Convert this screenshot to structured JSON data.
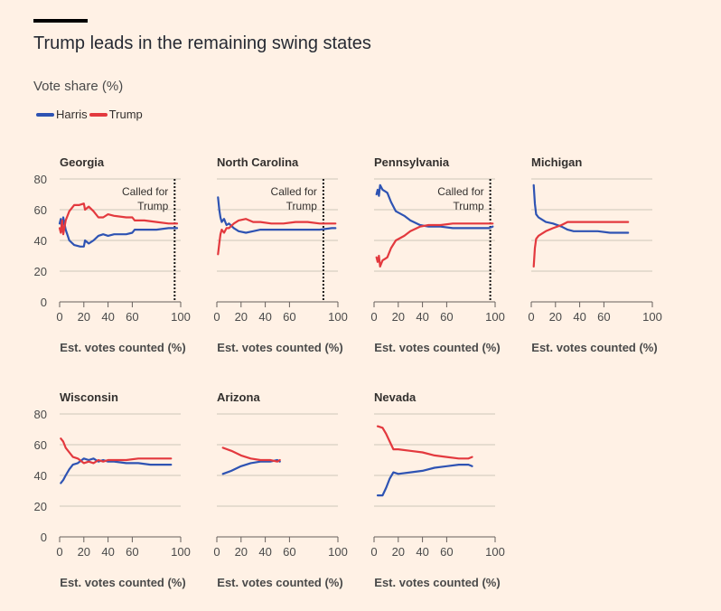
{
  "title": "Trump leads in the remaining swing states",
  "subtitle": "Vote share (%)",
  "legend": [
    {
      "name": "Harris",
      "color": "#2e53b3"
    },
    {
      "name": "Trump",
      "color": "#e3393e"
    }
  ],
  "called_label": [
    "Called for",
    "Trump"
  ],
  "chart_data": [
    {
      "type": "line",
      "title": "Georgia",
      "xlabel": "Est. votes counted (%)",
      "ylabel": "",
      "xlim": [
        0,
        100
      ],
      "ylim": [
        0,
        80
      ],
      "xticks": [
        0,
        20,
        40,
        60,
        100
      ],
      "yticks": [
        0,
        20,
        40,
        60,
        80
      ],
      "called_at": 95,
      "series": [
        {
          "name": "Harris",
          "points": [
            [
              0,
              51
            ],
            [
              1,
              54
            ],
            [
              2,
              46
            ],
            [
              3,
              55
            ],
            [
              5,
              47
            ],
            [
              8,
              40
            ],
            [
              12,
              37
            ],
            [
              17,
              36
            ],
            [
              20,
              36
            ],
            [
              21,
              40
            ],
            [
              24,
              38
            ],
            [
              28,
              40
            ],
            [
              32,
              43
            ],
            [
              36,
              44
            ],
            [
              40,
              43
            ],
            [
              45,
              44
            ],
            [
              55,
              44
            ],
            [
              60,
              45
            ],
            [
              62,
              47
            ],
            [
              70,
              47
            ],
            [
              80,
              47
            ],
            [
              90,
              48
            ],
            [
              97,
              48
            ]
          ]
        },
        {
          "name": "Trump",
          "points": [
            [
              0,
              48
            ],
            [
              1,
              45
            ],
            [
              2,
              53
            ],
            [
              3,
              44
            ],
            [
              5,
              53
            ],
            [
              8,
              59
            ],
            [
              12,
              63
            ],
            [
              16,
              63
            ],
            [
              20,
              64
            ],
            [
              21,
              60
            ],
            [
              24,
              62
            ],
            [
              28,
              59
            ],
            [
              32,
              55
            ],
            [
              36,
              55
            ],
            [
              40,
              57
            ],
            [
              45,
              56
            ],
            [
              55,
              55
            ],
            [
              60,
              55
            ],
            [
              62,
              53
            ],
            [
              70,
              53
            ],
            [
              80,
              52
            ],
            [
              90,
              51
            ],
            [
              97,
              51
            ]
          ]
        }
      ]
    },
    {
      "type": "line",
      "title": "North Carolina",
      "xlabel": "Est. votes counted (%)",
      "ylabel": "",
      "xlim": [
        0,
        100
      ],
      "ylim": [
        0,
        80
      ],
      "xticks": [
        0,
        20,
        40,
        60,
        100
      ],
      "yticks": [
        0,
        20,
        40,
        60,
        80
      ],
      "called_at": 88,
      "series": [
        {
          "name": "Harris",
          "points": [
            [
              1,
              68
            ],
            [
              2,
              60
            ],
            [
              3,
              55
            ],
            [
              4,
              52
            ],
            [
              6,
              54
            ],
            [
              8,
              50
            ],
            [
              10,
              51
            ],
            [
              14,
              48
            ],
            [
              18,
              46
            ],
            [
              24,
              45
            ],
            [
              30,
              46
            ],
            [
              36,
              47
            ],
            [
              45,
              47
            ],
            [
              55,
              47
            ],
            [
              65,
              47
            ],
            [
              75,
              47
            ],
            [
              85,
              47
            ],
            [
              95,
              48
            ],
            [
              98,
              48
            ]
          ]
        },
        {
          "name": "Trump",
          "points": [
            [
              1,
              31
            ],
            [
              2,
              38
            ],
            [
              3,
              44
            ],
            [
              4,
              47
            ],
            [
              6,
              45
            ],
            [
              8,
              48
            ],
            [
              10,
              48
            ],
            [
              14,
              51
            ],
            [
              18,
              53
            ],
            [
              24,
              54
            ],
            [
              30,
              52
            ],
            [
              36,
              52
            ],
            [
              45,
              51
            ],
            [
              55,
              51
            ],
            [
              65,
              52
            ],
            [
              75,
              52
            ],
            [
              85,
              51
            ],
            [
              95,
              51
            ],
            [
              98,
              51
            ]
          ]
        }
      ]
    },
    {
      "type": "line",
      "title": "Pennsylvania",
      "xlabel": "Est. votes counted (%)",
      "ylabel": "",
      "xlim": [
        0,
        100
      ],
      "ylim": [
        0,
        80
      ],
      "xticks": [
        0,
        20,
        40,
        60,
        100
      ],
      "yticks": [
        0,
        20,
        40,
        60,
        80
      ],
      "called_at": 96,
      "series": [
        {
          "name": "Harris",
          "points": [
            [
              2,
              70
            ],
            [
              3,
              73
            ],
            [
              4,
              69
            ],
            [
              5,
              76
            ],
            [
              7,
              73
            ],
            [
              9,
              72
            ],
            [
              11,
              71
            ],
            [
              14,
              65
            ],
            [
              18,
              59
            ],
            [
              25,
              56
            ],
            [
              30,
              53
            ],
            [
              38,
              50
            ],
            [
              45,
              49
            ],
            [
              55,
              49
            ],
            [
              65,
              48
            ],
            [
              75,
              48
            ],
            [
              85,
              48
            ],
            [
              95,
              48
            ],
            [
              98,
              49
            ]
          ]
        },
        {
          "name": "Trump",
          "points": [
            [
              2,
              29
            ],
            [
              3,
              26
            ],
            [
              4,
              30
            ],
            [
              5,
              23
            ],
            [
              7,
              27
            ],
            [
              9,
              28
            ],
            [
              11,
              29
            ],
            [
              14,
              35
            ],
            [
              18,
              40
            ],
            [
              25,
              43
            ],
            [
              30,
              46
            ],
            [
              38,
              49
            ],
            [
              45,
              50
            ],
            [
              55,
              50
            ],
            [
              65,
              51
            ],
            [
              75,
              51
            ],
            [
              85,
              51
            ],
            [
              95,
              51
            ],
            [
              98,
              51
            ]
          ]
        }
      ]
    },
    {
      "type": "line",
      "title": "Michigan",
      "xlabel": "Est. votes counted (%)",
      "ylabel": "",
      "xlim": [
        0,
        100
      ],
      "ylim": [
        0,
        80
      ],
      "xticks": [
        0,
        20,
        40,
        60,
        100
      ],
      "yticks": [
        0,
        20,
        40,
        60,
        80
      ],
      "series": [
        {
          "name": "Harris",
          "points": [
            [
              2,
              76
            ],
            [
              3,
              64
            ],
            [
              4,
              57
            ],
            [
              6,
              55
            ],
            [
              8,
              54
            ],
            [
              12,
              52
            ],
            [
              18,
              51
            ],
            [
              25,
              49
            ],
            [
              30,
              47
            ],
            [
              35,
              46
            ],
            [
              45,
              46
            ],
            [
              55,
              46
            ],
            [
              65,
              45
            ],
            [
              75,
              45
            ],
            [
              80,
              45
            ]
          ]
        },
        {
          "name": "Trump",
          "points": [
            [
              2,
              23
            ],
            [
              3,
              35
            ],
            [
              4,
              41
            ],
            [
              6,
              43
            ],
            [
              8,
              44
            ],
            [
              12,
              46
            ],
            [
              18,
              48
            ],
            [
              25,
              50
            ],
            [
              30,
              52
            ],
            [
              35,
              52
            ],
            [
              45,
              52
            ],
            [
              55,
              52
            ],
            [
              65,
              52
            ],
            [
              75,
              52
            ],
            [
              80,
              52
            ]
          ]
        }
      ]
    },
    {
      "type": "line",
      "title": "Wisconsin",
      "xlabel": "Est. votes counted (%)",
      "ylabel": "",
      "xlim": [
        0,
        100
      ],
      "ylim": [
        0,
        80
      ],
      "xticks": [
        0,
        20,
        40,
        60,
        100
      ],
      "yticks": [
        0,
        20,
        40,
        60,
        80
      ],
      "series": [
        {
          "name": "Harris",
          "points": [
            [
              1,
              35
            ],
            [
              3,
              37
            ],
            [
              5,
              40
            ],
            [
              8,
              44
            ],
            [
              11,
              47
            ],
            [
              15,
              48
            ],
            [
              20,
              51
            ],
            [
              24,
              50
            ],
            [
              28,
              51
            ],
            [
              32,
              49
            ],
            [
              36,
              50
            ],
            [
              40,
              49
            ],
            [
              45,
              49
            ],
            [
              55,
              48
            ],
            [
              65,
              48
            ],
            [
              75,
              47
            ],
            [
              85,
              47
            ],
            [
              92,
              47
            ]
          ]
        },
        {
          "name": "Trump",
          "points": [
            [
              1,
              64
            ],
            [
              3,
              62
            ],
            [
              5,
              58
            ],
            [
              8,
              55
            ],
            [
              11,
              52
            ],
            [
              15,
              51
            ],
            [
              20,
              48
            ],
            [
              24,
              49
            ],
            [
              28,
              48
            ],
            [
              32,
              50
            ],
            [
              36,
              49
            ],
            [
              40,
              50
            ],
            [
              45,
              50
            ],
            [
              55,
              50
            ],
            [
              65,
              51
            ],
            [
              75,
              51
            ],
            [
              85,
              51
            ],
            [
              92,
              51
            ]
          ]
        }
      ]
    },
    {
      "type": "line",
      "title": "Arizona",
      "xlabel": "Est. votes counted (%)",
      "ylabel": "",
      "xlim": [
        0,
        100
      ],
      "ylim": [
        0,
        80
      ],
      "xticks": [
        0,
        20,
        40,
        60,
        100
      ],
      "yticks": [
        0,
        20,
        40,
        60,
        80
      ],
      "series": [
        {
          "name": "Harris",
          "points": [
            [
              5,
              41
            ],
            [
              12,
              43
            ],
            [
              20,
              46
            ],
            [
              28,
              48
            ],
            [
              36,
              49
            ],
            [
              44,
              49
            ],
            [
              50,
              50
            ],
            [
              52,
              49
            ]
          ]
        },
        {
          "name": "Trump",
          "points": [
            [
              5,
              58
            ],
            [
              12,
              56
            ],
            [
              20,
              53
            ],
            [
              28,
              51
            ],
            [
              36,
              50
            ],
            [
              44,
              50
            ],
            [
              50,
              49
            ],
            [
              52,
              50
            ]
          ]
        }
      ]
    },
    {
      "type": "line",
      "title": "Nevada",
      "xlabel": "Est. votes counted (%)",
      "ylabel": "",
      "xlim": [
        0,
        100
      ],
      "ylim": [
        0,
        80
      ],
      "xticks": [
        0,
        20,
        40,
        60,
        100
      ],
      "yticks": [
        0,
        20,
        40,
        60,
        80
      ],
      "series": [
        {
          "name": "Harris",
          "points": [
            [
              3,
              27
            ],
            [
              7,
              27
            ],
            [
              10,
              32
            ],
            [
              13,
              38
            ],
            [
              16,
              42
            ],
            [
              20,
              41
            ],
            [
              30,
              42
            ],
            [
              40,
              43
            ],
            [
              50,
              45
            ],
            [
              60,
              46
            ],
            [
              70,
              47
            ],
            [
              78,
              47
            ],
            [
              81,
              46
            ]
          ]
        },
        {
          "name": "Trump",
          "points": [
            [
              3,
              72
            ],
            [
              7,
              71
            ],
            [
              10,
              67
            ],
            [
              13,
              62
            ],
            [
              16,
              57
            ],
            [
              20,
              57
            ],
            [
              30,
              56
            ],
            [
              40,
              55
            ],
            [
              50,
              53
            ],
            [
              60,
              52
            ],
            [
              70,
              51
            ],
            [
              78,
              51
            ],
            [
              81,
              52
            ]
          ]
        }
      ]
    }
  ]
}
